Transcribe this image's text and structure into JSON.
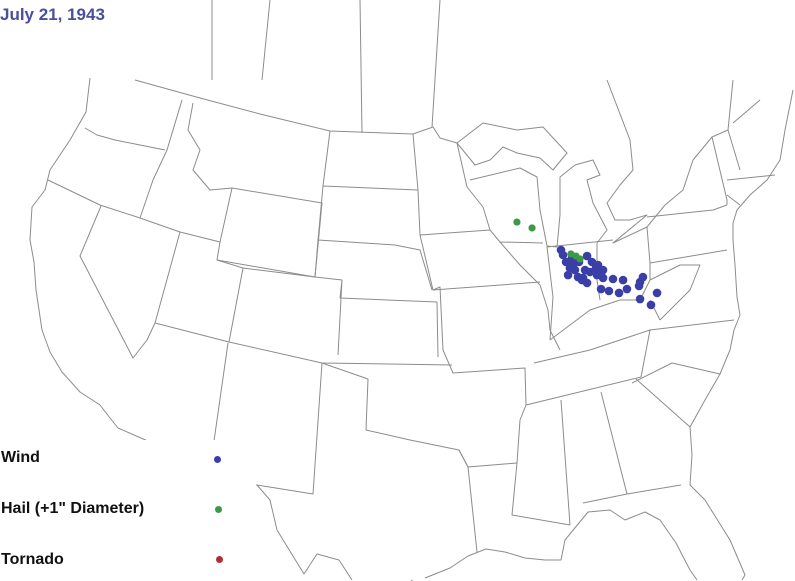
{
  "title": "July 21, 1943",
  "legend": [
    {
      "label": "Wind",
      "color": "#3a3fa8"
    },
    {
      "label": "Hail (+1\" Diameter)",
      "color": "#3a9a4a"
    },
    {
      "label": "Tornado",
      "color": "#b03030"
    }
  ],
  "reports": {
    "wind": [
      [
        41.6,
        -87.3
      ],
      [
        41.32,
        -87.16
      ],
      [
        40.93,
        -86.95
      ],
      [
        40.59,
        -86.68
      ],
      [
        40.48,
        -86.33
      ],
      [
        40.2,
        -86.81
      ],
      [
        40.09,
        -86.12
      ],
      [
        40.76,
        -86.47
      ],
      [
        41.15,
        -86.54
      ],
      [
        40.48,
        -85.63
      ],
      [
        40.04,
        -85.77
      ],
      [
        40.37,
        -85.29
      ],
      [
        40.59,
        -84.87
      ],
      [
        40.76,
        -84.73
      ],
      [
        40.48,
        -84.38
      ],
      [
        39.92,
        -85.84
      ],
      [
        39.76,
        -85.49
      ],
      [
        40.2,
        -84.8
      ],
      [
        40.04,
        -84.38
      ],
      [
        39.42,
        -84.52
      ],
      [
        39.31,
        -83.97
      ],
      [
        39.98,
        -83.69
      ],
      [
        39.92,
        -82.99
      ],
      [
        39.42,
        -82.72
      ],
      [
        39.2,
        -83.27
      ],
      [
        39.81,
        -81.81
      ],
      [
        40.09,
        -81.61
      ],
      [
        39.59,
        -81.88
      ],
      [
        39.2,
        -80.63
      ],
      [
        38.86,
        -81.81
      ],
      [
        38.53,
        -81.05
      ],
      [
        41.26,
        -85.49
      ],
      [
        40.93,
        -85.15
      ],
      [
        40.93,
        -86.05
      ]
    ],
    "hail": [
      [
        43.16,
        -90.36
      ],
      [
        42.83,
        -89.31
      ],
      [
        41.38,
        -86.61
      ],
      [
        41.26,
        -86.26
      ],
      [
        41.1,
        -85.98
      ]
    ],
    "tornado": []
  }
}
